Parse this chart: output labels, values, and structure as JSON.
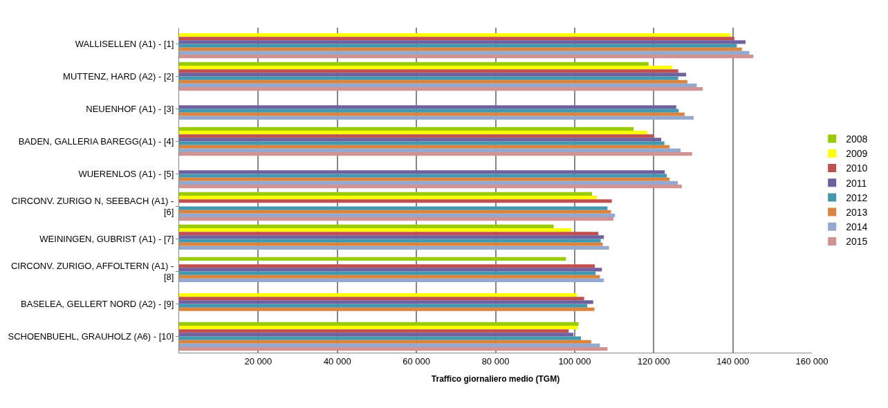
{
  "chart_data": {
    "type": "bar",
    "orientation": "horizontal",
    "xlabel": "Traffico giornaliero medio (TGM)",
    "categories": [
      "WALLISELLEN (A1) - [1]",
      "MUTTENZ, HARD (A2) - [2]",
      "NEUENHOF (A1) - [3]",
      "BADEN, GALLERIA BAREGG(A1) - [4]",
      "WUERENLOS (A1) - [5]",
      "CIRCONV. ZURIGO N, SEEBACH (A1) -\n[6]",
      "WEININGEN, GUBRIST (A1) - [7]",
      "CIRCONV. ZURIGO, AFFOLTERN (A1) -\n[8]",
      "BASELEA, GELLERT NORD (A2) - [9]",
      "SCHOENBUEHL, GRAUHOLZ (A6) - [10]"
    ],
    "series": [
      {
        "name": "2008",
        "color": "#99cc00",
        "values": [
          null,
          118700,
          null,
          114900,
          null,
          104400,
          94700,
          97800,
          null,
          101000
        ]
      },
      {
        "name": "2009",
        "color": "#ffff00",
        "values": [
          139400,
          124700,
          null,
          118400,
          null,
          105600,
          99200,
          null,
          100600,
          100800
        ]
      },
      {
        "name": "2010",
        "color": "#c0504d",
        "values": [
          140400,
          126200,
          null,
          120000,
          null,
          109400,
          106000,
          105100,
          102400,
          98500
        ]
      },
      {
        "name": "2011",
        "color": "#7160a0",
        "values": [
          143200,
          128200,
          125700,
          121900,
          122800,
          null,
          107400,
          106900,
          104700,
          99700
        ]
      },
      {
        "name": "2012",
        "color": "#4198af",
        "values": [
          141000,
          126200,
          126300,
          122700,
          123300,
          108300,
          106600,
          105300,
          103200,
          101600
        ]
      },
      {
        "name": "2013",
        "color": "#db843d",
        "values": [
          142300,
          128500,
          127800,
          124000,
          124000,
          109200,
          107100,
          106400,
          105000,
          104200
        ]
      },
      {
        "name": "2014",
        "color": "#93a9cf",
        "values": [
          144200,
          130900,
          130100,
          126800,
          126100,
          110200,
          108700,
          107400,
          null,
          106400
        ]
      },
      {
        "name": "2015",
        "color": "#d19392",
        "values": [
          145200,
          132400,
          null,
          129700,
          127100,
          109800,
          null,
          null,
          null,
          108300
        ]
      }
    ],
    "xlim": [
      0,
      160000
    ],
    "xticks": [
      {
        "value": 20000,
        "label": "20 000"
      },
      {
        "value": 40000,
        "label": "40 000"
      },
      {
        "value": 60000,
        "label": "60 000"
      },
      {
        "value": 80000,
        "label": "80 000"
      },
      {
        "value": 100000,
        "label": "100 000"
      },
      {
        "value": 120000,
        "label": "120 000"
      },
      {
        "value": 140000,
        "label": "140 000"
      },
      {
        "value": 160000,
        "label": "160 000"
      }
    ],
    "grid": "x",
    "legend": "right"
  }
}
